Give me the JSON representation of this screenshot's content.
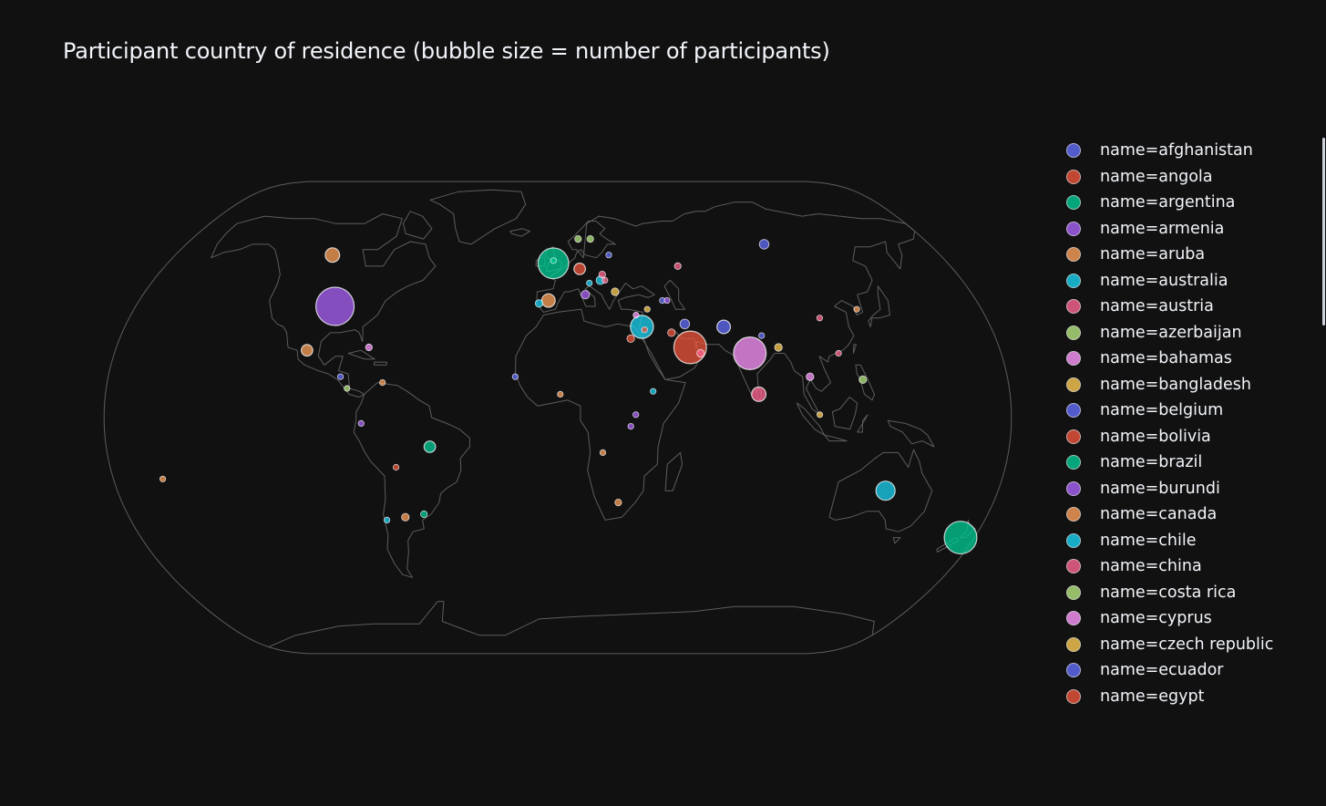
{
  "title": "Participant country of residence (bubble size = number of participants)",
  "colors": {
    "background": "#111111",
    "text": "#f2f5fa",
    "land_outline": "#5d5d5d",
    "palette": [
      "#636efa",
      "#EF553B",
      "#00cc96",
      "#ab63fa",
      "#FFA15A",
      "#19d3f3",
      "#FF6692",
      "#B6E880",
      "#FF97FF",
      "#FECB52"
    ]
  },
  "legend": {
    "items": [
      {
        "label": "name=afghanistan",
        "color": "#636efa"
      },
      {
        "label": "name=angola",
        "color": "#EF553B"
      },
      {
        "label": "name=argentina",
        "color": "#00cc96"
      },
      {
        "label": "name=armenia",
        "color": "#ab63fa"
      },
      {
        "label": "name=aruba",
        "color": "#FFA15A"
      },
      {
        "label": "name=australia",
        "color": "#19d3f3"
      },
      {
        "label": "name=austria",
        "color": "#FF6692"
      },
      {
        "label": "name=azerbaijan",
        "color": "#B6E880"
      },
      {
        "label": "name=bahamas",
        "color": "#FF97FF"
      },
      {
        "label": "name=bangladesh",
        "color": "#FECB52"
      },
      {
        "label": "name=belgium",
        "color": "#636efa"
      },
      {
        "label": "name=bolivia",
        "color": "#EF553B"
      },
      {
        "label": "name=brazil",
        "color": "#00cc96"
      },
      {
        "label": "name=burundi",
        "color": "#ab63fa"
      },
      {
        "label": "name=canada",
        "color": "#FFA15A"
      },
      {
        "label": "name=chile",
        "color": "#19d3f3"
      },
      {
        "label": "name=china",
        "color": "#FF6692"
      },
      {
        "label": "name=costa rica",
        "color": "#B6E880"
      },
      {
        "label": "name=cyprus",
        "color": "#FF97FF"
      },
      {
        "label": "name=czech republic",
        "color": "#FECB52"
      },
      {
        "label": "name=ecuador",
        "color": "#636efa"
      },
      {
        "label": "name=egypt",
        "color": "#EF553B"
      }
    ]
  },
  "chart_data": {
    "type": "scatter",
    "projection": "natural earth",
    "size_encodes": "number of participants",
    "points": [
      {
        "lon": -95,
        "lat": 38,
        "size": 20,
        "color": "#ab63fa"
      },
      {
        "lon": 174,
        "lat": -41,
        "size": 17,
        "color": "#00cc96"
      },
      {
        "lon": 78,
        "lat": 22,
        "size": 17,
        "color": "#FF97FF"
      },
      {
        "lon": 54,
        "lat": 24,
        "size": 17,
        "color": "#EF553B"
      },
      {
        "lon": -2,
        "lat": 53,
        "size": 16,
        "color": "#00cc96"
      },
      {
        "lon": 35,
        "lat": 31,
        "size": 12,
        "color": "#19d3f3"
      },
      {
        "lon": 134,
        "lat": -25,
        "size": 10,
        "color": "#19d3f3"
      },
      {
        "lon": 80,
        "lat": 8,
        "size": 7.5,
        "color": "#FF6692"
      },
      {
        "lon": -106,
        "lat": 56,
        "size": 7.5,
        "color": "#FFA15A"
      },
      {
        "lon": 69,
        "lat": 31,
        "size": 7,
        "color": "#636efa"
      },
      {
        "lon": -4,
        "lat": 40,
        "size": 7,
        "color": "#FFA15A"
      },
      {
        "lon": -102,
        "lat": 23,
        "size": 6,
        "color": "#FFA15A"
      },
      {
        "lon": -51,
        "lat": -10,
        "size": 6,
        "color": "#00cc96"
      },
      {
        "lon": 10,
        "lat": 51,
        "size": 6,
        "color": "#EF553B"
      },
      {
        "lon": 100,
        "lat": 60,
        "size": 5,
        "color": "#636efa"
      },
      {
        "lon": 53,
        "lat": 32,
        "size": 5,
        "color": "#636efa"
      },
      {
        "lon": 19,
        "lat": 47,
        "size": 4.5,
        "color": "#19d3f3"
      },
      {
        "lon": 12,
        "lat": 42,
        "size": 4.5,
        "color": "#ab63fa"
      },
      {
        "lon": -8,
        "lat": 39,
        "size": 4,
        "color": "#19d3f3"
      },
      {
        "lon": 122,
        "lat": 13,
        "size": 4,
        "color": "#B6E880"
      },
      {
        "lon": 101,
        "lat": 14,
        "size": 4,
        "color": "#FF97FF"
      },
      {
        "lon": 90,
        "lat": 24,
        "size": 4,
        "color": "#FECB52"
      },
      {
        "lon": 25,
        "lat": 43,
        "size": 4,
        "color": "#FECB52"
      },
      {
        "lon": 58,
        "lat": 22,
        "size": 4,
        "color": "#FF6692"
      },
      {
        "lon": 47,
        "lat": 29,
        "size": 4,
        "color": "#EF553B"
      },
      {
        "lon": 30,
        "lat": 27,
        "size": 4,
        "color": "#EF553B"
      },
      {
        "lon": -64,
        "lat": -34,
        "size": 4,
        "color": "#FFA15A"
      },
      {
        "lon": -56,
        "lat": -33,
        "size": 3.5,
        "color": "#00cc96"
      },
      {
        "lon": 25,
        "lat": -29,
        "size": 3.5,
        "color": "#FFA15A"
      },
      {
        "lon": 16,
        "lat": 62,
        "size": 3.5,
        "color": "#B6E880"
      },
      {
        "lon": 10,
        "lat": 62,
        "size": 3.5,
        "color": "#B6E880"
      },
      {
        "lon": -77,
        "lat": 24,
        "size": 3.5,
        "color": "#FF97FF"
      },
      {
        "lon": 55,
        "lat": 52,
        "size": 3.5,
        "color": "#FF6692"
      },
      {
        "lon": 20,
        "lat": 49,
        "size": 3.5,
        "color": "#FF6692"
      },
      {
        "lon": 38,
        "lat": 9,
        "size": 3,
        "color": "#19d3f3"
      },
      {
        "lon": 24,
        "lat": 56,
        "size": 3,
        "color": "#636efa"
      },
      {
        "lon": 45,
        "lat": 40,
        "size": 3,
        "color": "#636efa"
      },
      {
        "lon": 47,
        "lat": 40,
        "size": 3,
        "color": "#ab63fa"
      },
      {
        "lon": 33,
        "lat": 35,
        "size": 3,
        "color": "#FF97FF"
      },
      {
        "lon": 38,
        "lat": 37,
        "size": 3,
        "color": "#FECB52"
      },
      {
        "lon": 29,
        "lat": -3,
        "size": 3,
        "color": "#ab63fa"
      },
      {
        "lon": 18,
        "lat": -12,
        "size": 3,
        "color": "#FFA15A"
      },
      {
        "lon": 1,
        "lat": 8,
        "size": 3,
        "color": "#FFA15A"
      },
      {
        "lon": -17,
        "lat": 14,
        "size": 3,
        "color": "#636efa"
      },
      {
        "lon": -72,
        "lat": -35,
        "size": 3,
        "color": "#19d3f3"
      },
      {
        "lon": -65,
        "lat": -17,
        "size": 3,
        "color": "#EF553B"
      },
      {
        "lon": -78,
        "lat": -2,
        "size": 3,
        "color": "#ab63fa"
      },
      {
        "lon": -84,
        "lat": 10,
        "size": 3,
        "color": "#B6E880"
      },
      {
        "lon": -87,
        "lat": 14,
        "size": 3,
        "color": "#636efa"
      },
      {
        "lon": -70,
        "lat": 12,
        "size": 3,
        "color": "#FFA15A"
      },
      {
        "lon": -160,
        "lat": -21,
        "size": 3,
        "color": "#FFA15A"
      },
      {
        "lon": 127,
        "lat": 37,
        "size": 3,
        "color": "#FFA15A"
      },
      {
        "lon": 114,
        "lat": 22,
        "size": 3,
        "color": "#FF6692"
      },
      {
        "lon": 104,
        "lat": 1,
        "size": 3,
        "color": "#FECB52"
      },
      {
        "lon": 84,
        "lat": 28,
        "size": 3,
        "color": "#636efa"
      },
      {
        "lon": 14,
        "lat": 46,
        "size": 3,
        "color": "#19d3f3"
      },
      {
        "lon": 31,
        "lat": 1,
        "size": 3,
        "color": "#ab63fa"
      },
      {
        "lon": 36,
        "lat": 30,
        "size": 3,
        "color": "#EF553B"
      },
      {
        "lon": 21,
        "lat": 47,
        "size": 3,
        "color": "#FF6692"
      },
      {
        "lon": -2,
        "lat": 54,
        "size": 3,
        "color": "#00cc96"
      },
      {
        "lon": 110,
        "lat": 34,
        "size": 3,
        "color": "#FF6692"
      }
    ]
  }
}
